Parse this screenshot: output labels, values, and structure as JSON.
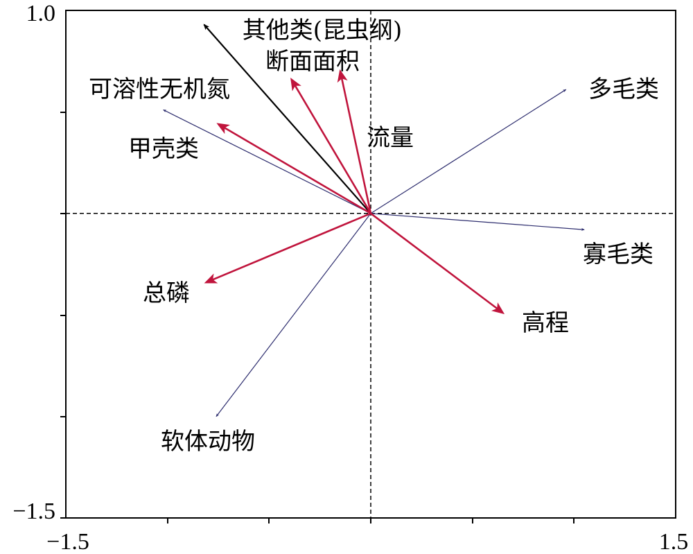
{
  "chart_data": {
    "type": "scatter",
    "subtype": "rda-biplot",
    "xlim": [
      -1.5,
      1.5
    ],
    "ylim": [
      -1.5,
      1.0
    ],
    "x_tick_labels": [
      "−1.5",
      "1.5"
    ],
    "y_tick_labels": [
      "1.0",
      "−1.5"
    ],
    "grid": false,
    "origin_lines": "dashed",
    "colors": {
      "species": "#2d2d6e",
      "environment": "#c0143c",
      "black_vector": "#000000"
    },
    "species_vectors": [
      {
        "label": "其他类(昆虫纲)",
        "x": -0.82,
        "y": 0.93,
        "color": "black"
      },
      {
        "label": "可溶性无机氮",
        "x": -1.02,
        "y": 0.51
      },
      {
        "label": "多毛类",
        "x": 0.96,
        "y": 0.61
      },
      {
        "label": "寡毛类",
        "x": 1.05,
        "y": -0.08
      },
      {
        "label": "软体动物",
        "x": -0.76,
        "y": -1.0
      }
    ],
    "environment_vectors": [
      {
        "label": "断面面积",
        "x": -0.39,
        "y": 0.66
      },
      {
        "label": "流量",
        "x": -0.15,
        "y": 0.7
      },
      {
        "label": "甲壳类",
        "x": -0.75,
        "y": 0.44
      },
      {
        "label": "总磷",
        "x": -0.81,
        "y": -0.34
      },
      {
        "label": "高程",
        "x": 0.65,
        "y": -0.49
      }
    ]
  }
}
